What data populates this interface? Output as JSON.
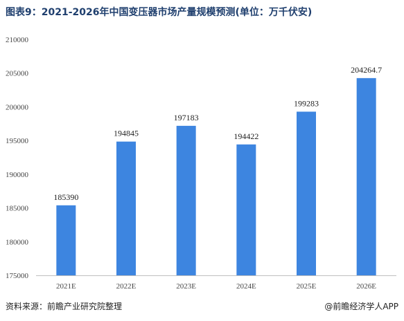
{
  "chart_data": {
    "type": "bar",
    "title": "图表9：2021-2026年中国变压器市场产量规模预测(单位：万千伏安)",
    "categories": [
      "2021E",
      "2022E",
      "2023E",
      "2024E",
      "2025E",
      "2026E"
    ],
    "values": [
      185390,
      194845,
      197183,
      194422,
      199283,
      204264.7
    ],
    "value_labels": [
      "185390",
      "194845",
      "197183",
      "194422",
      "199283",
      "204264.7"
    ],
    "xlabel": "",
    "ylabel": "",
    "ylim": [
      175000,
      210000
    ],
    "yticks": [
      175000,
      180000,
      185000,
      190000,
      195000,
      200000,
      205000,
      210000
    ],
    "ytick_labels": [
      "175000",
      "180000",
      "185000",
      "190000",
      "195000",
      "200000",
      "205000",
      "210000"
    ],
    "grid": false,
    "bar_color": "#3d85e0"
  },
  "footer": {
    "source": "资料来源：前瞻产业研究院整理",
    "brand": "@前瞻经济学人APP"
  }
}
